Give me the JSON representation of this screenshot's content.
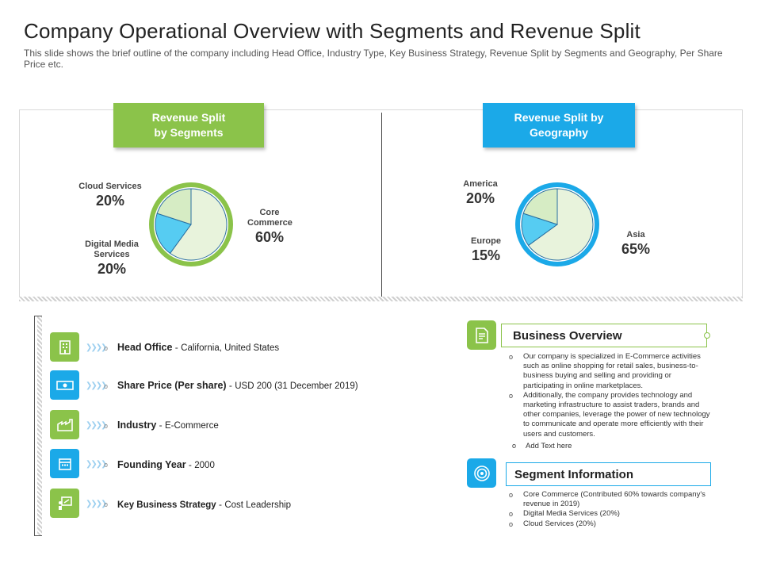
{
  "slide": {
    "title": "Company Operational Overview with Segments and Revenue Split",
    "subtitle": "This slide shows the brief outline of the company including Head Office, Industry Type, Key Business Strategy, Revenue Split by Segments and Geography, Per Share Price etc."
  },
  "colors": {
    "green": "#8bc34a",
    "blue": "#1ba9e8",
    "light": "#e8f3dc",
    "cyan": "#56ccf2"
  },
  "segments_tag": {
    "line1": "Revenue Split",
    "line2": "by Segments"
  },
  "geography_tag": {
    "line1": "Revenue Split by",
    "line2": "Geography"
  },
  "chart_data": [
    {
      "type": "pie",
      "title": "Revenue Split by Segments",
      "labels": [
        "Core Commerce",
        "Digital Media Services",
        "Cloud Services"
      ],
      "values": [
        60,
        20,
        20
      ],
      "label_lines": [
        [
          "Core",
          "Commerce"
        ],
        [
          "Digital Media",
          "Services"
        ],
        [
          "Cloud Services"
        ]
      ],
      "value_labels": [
        "60%",
        "20%",
        "20%"
      ]
    },
    {
      "type": "pie",
      "title": "Revenue Split by Geography",
      "labels": [
        "Asia",
        "Europe",
        "America"
      ],
      "values": [
        65,
        15,
        20
      ],
      "value_labels": [
        "65%",
        "15%",
        "20%"
      ]
    }
  ],
  "info": [
    {
      "label": "Head Office",
      "value": "California, United States",
      "icon": "building-icon",
      "color": "green"
    },
    {
      "label": "Share Price (Per share)",
      "value": "USD 200 (31 December 2019)",
      "icon": "money-icon",
      "color": "blue"
    },
    {
      "label": "Industry",
      "value": "E-Commerce",
      "icon": "factory-icon",
      "color": "green"
    },
    {
      "label": "Founding Year",
      "value": "2000",
      "icon": "calendar-icon",
      "color": "blue"
    },
    {
      "label": "Key Business Strategy",
      "value": "Cost Leadership",
      "icon": "strategy-board-icon",
      "color": "green"
    }
  ],
  "business_overview": {
    "title": "Business Overview",
    "bullets": [
      "Our company is specialized in E-Commerce activities such as online shopping for retail sales, business-to-business buying and selling and providing or participating in online marketplaces.",
      " Additionally, the company provides technology and marketing infrastructure to assist traders, brands and other companies, leverage the power of new technology to communicate and operate more efficiently with their users and customers."
    ],
    "add_text": "Add Text here"
  },
  "segment_information": {
    "title": "Segment Information",
    "bullets": [
      "Core Commerce (Contributed 60% towards company's revenue in 2019)",
      "Digital Media Services (20%)",
      "Cloud Services (20%)"
    ]
  }
}
